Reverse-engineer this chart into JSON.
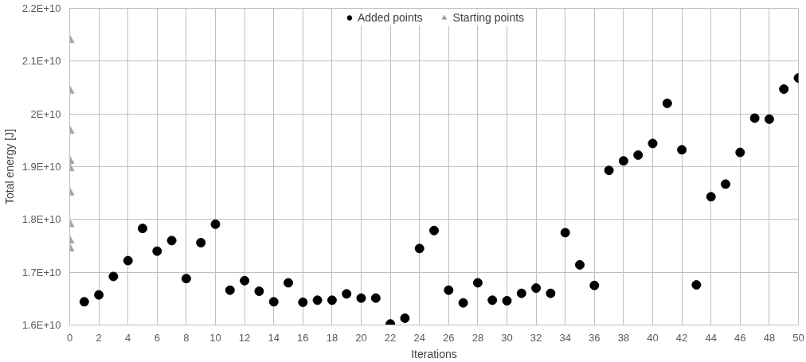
{
  "chart_data": {
    "type": "scatter",
    "xlabel": "Iterations",
    "ylabel": "Total energy [J]",
    "xlim": [
      0,
      50
    ],
    "ylim": [
      16000000000.0,
      22000000000.0
    ],
    "xticks": [
      0,
      2,
      4,
      6,
      8,
      10,
      12,
      14,
      16,
      18,
      20,
      22,
      24,
      26,
      28,
      30,
      32,
      34,
      36,
      38,
      40,
      42,
      44,
      46,
      48,
      50
    ],
    "yticks": [
      {
        "value": 16000000000.0,
        "label": "1.6E+10"
      },
      {
        "value": 17000000000.0,
        "label": "1.7E+10"
      },
      {
        "value": 18000000000.0,
        "label": "1.8E+10"
      },
      {
        "value": 19000000000.0,
        "label": "1.9E+10"
      },
      {
        "value": 20000000000.0,
        "label": "2E+10"
      },
      {
        "value": 21000000000.0,
        "label": "2.1E+10"
      },
      {
        "value": 22000000000.0,
        "label": "2.2E+10"
      }
    ],
    "grid": true,
    "legend": "top",
    "series": [
      {
        "name": "Added points",
        "color": "#000000",
        "marker": "circle",
        "x": [
          1,
          2,
          3,
          4,
          5,
          6,
          7,
          8,
          9,
          10,
          11,
          12,
          13,
          14,
          15,
          16,
          17,
          18,
          19,
          20,
          21,
          22,
          23,
          24,
          25,
          26,
          27,
          28,
          29,
          30,
          31,
          32,
          33,
          34,
          35,
          36,
          37,
          38,
          39,
          40,
          41,
          42,
          43,
          44,
          45,
          46,
          47,
          48,
          49,
          50
        ],
        "values": [
          16440000000.0,
          16570000000.0,
          16920000000.0,
          17220000000.0,
          17830000000.0,
          17400000000.0,
          17600000000.0,
          16880000000.0,
          17560000000.0,
          17910000000.0,
          16660000000.0,
          16840000000.0,
          16640000000.0,
          16440000000.0,
          16800000000.0,
          16430000000.0,
          16470000000.0,
          16470000000.0,
          16590000000.0,
          16510000000.0,
          16510000000.0,
          16020000000.0,
          16130000000.0,
          17450000000.0,
          17790000000.0,
          16660000000.0,
          16420000000.0,
          16800000000.0,
          16470000000.0,
          16460000000.0,
          16600000000.0,
          16700000000.0,
          16600000000.0,
          17750000000.0,
          17140000000.0,
          16750000000.0,
          18930000000.0,
          19110000000.0,
          19220000000.0,
          19440000000.0,
          20200000000.0,
          19320000000.0,
          16760000000.0,
          18430000000.0,
          18670000000.0,
          19270000000.0,
          19920000000.0,
          19900000000.0,
          20470000000.0,
          20680000000.0
        ]
      },
      {
        "name": "Starting points",
        "color": "#a5a5a5",
        "marker": "triangle",
        "x": [
          0,
          0,
          0,
          0,
          0,
          0,
          0,
          0,
          0
        ],
        "values": [
          21400000000.0,
          20440000000.0,
          19680000000.0,
          19110000000.0,
          18970000000.0,
          18510000000.0,
          17910000000.0,
          17600000000.0,
          17450000000.0
        ]
      }
    ]
  }
}
